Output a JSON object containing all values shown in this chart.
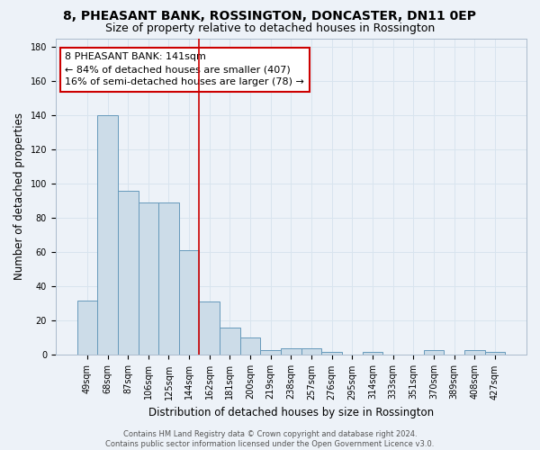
{
  "title": "8, PHEASANT BANK, ROSSINGTON, DONCASTER, DN11 0EP",
  "subtitle": "Size of property relative to detached houses in Rossington",
  "xlabel": "Distribution of detached houses by size in Rossington",
  "ylabel": "Number of detached properties",
  "categories": [
    "49sqm",
    "68sqm",
    "87sqm",
    "106sqm",
    "125sqm",
    "144sqm",
    "162sqm",
    "181sqm",
    "200sqm",
    "219sqm",
    "238sqm",
    "257sqm",
    "276sqm",
    "295sqm",
    "314sqm",
    "333sqm",
    "351sqm",
    "370sqm",
    "389sqm",
    "408sqm",
    "427sqm"
  ],
  "values": [
    32,
    140,
    96,
    89,
    89,
    61,
    31,
    16,
    10,
    3,
    4,
    4,
    2,
    0,
    2,
    0,
    0,
    3,
    0,
    3,
    2
  ],
  "bar_color": "#ccdce8",
  "bar_edge_color": "#6699bb",
  "grid_color": "#d8e4ee",
  "background_color": "#edf2f8",
  "red_line_x": 5.5,
  "annotation_text": "8 PHEASANT BANK: 141sqm\n← 84% of detached houses are smaller (407)\n16% of semi-detached houses are larger (78) →",
  "annotation_box_color": "#ffffff",
  "annotation_box_edge": "#cc0000",
  "ylim": [
    0,
    185
  ],
  "yticks": [
    0,
    20,
    40,
    60,
    80,
    100,
    120,
    140,
    160,
    180
  ],
  "footer": "Contains HM Land Registry data © Crown copyright and database right 2024.\nContains public sector information licensed under the Open Government Licence v3.0.",
  "title_fontsize": 10,
  "subtitle_fontsize": 9,
  "ylabel_fontsize": 8.5,
  "xlabel_fontsize": 8.5,
  "tick_fontsize": 7,
  "annotation_fontsize": 8,
  "footer_fontsize": 6
}
